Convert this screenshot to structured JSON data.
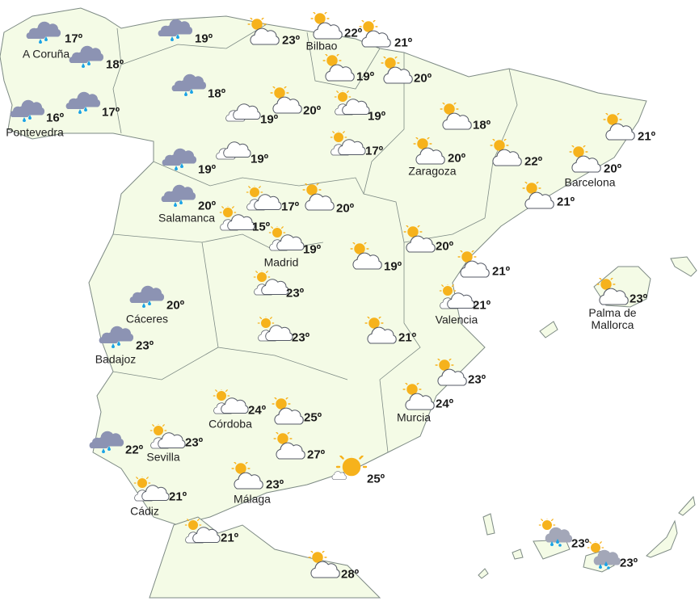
{
  "colors": {
    "land": "#f4fbe6",
    "border": "#7d8a84",
    "sea": "#ffffff",
    "rain_cloud": "#8c93b3",
    "cloud": "#ffffff",
    "sun": "#f6b21c",
    "rain": "#1aa3e6"
  },
  "locations": [
    {
      "label": "A Coruña",
      "temp": "17º",
      "icon": "rain"
    },
    {
      "label": "",
      "temp": "18º",
      "icon": "rain"
    },
    {
      "label": "Pontevedra",
      "temp": "16º",
      "icon": "rain"
    },
    {
      "label": "",
      "temp": "17º",
      "icon": "rain"
    },
    {
      "label": "",
      "temp": "19º",
      "icon": "rain"
    },
    {
      "label": "",
      "temp": "18º",
      "icon": "rain"
    },
    {
      "label": "",
      "temp": "23º",
      "icon": "sun-cloud"
    },
    {
      "label": "Bilbao",
      "temp": "22º",
      "icon": "sun-cloud"
    },
    {
      "label": "",
      "temp": "21º",
      "icon": "sun-cloud"
    },
    {
      "label": "",
      "temp": "19º",
      "icon": "sun-cloud"
    },
    {
      "label": "",
      "temp": "20º",
      "icon": "sun-cloud"
    },
    {
      "label": "",
      "temp": "19º",
      "icon": "clouds"
    },
    {
      "label": "",
      "temp": "20º",
      "icon": "sun-cloud"
    },
    {
      "label": "",
      "temp": "19º",
      "icon": "sun-clouds"
    },
    {
      "label": "",
      "temp": "17º",
      "icon": "sun-clouds"
    },
    {
      "label": "",
      "temp": "18º",
      "icon": "sun-cloud"
    },
    {
      "label": "",
      "temp": "21º",
      "icon": "sun-cloud"
    },
    {
      "label": "",
      "temp": "19º",
      "icon": "rain"
    },
    {
      "label": "",
      "temp": "19º",
      "icon": "clouds"
    },
    {
      "label": "Zaragoza",
      "temp": "20º",
      "icon": "sun-cloud"
    },
    {
      "label": "",
      "temp": "22º",
      "icon": "sun-cloud"
    },
    {
      "label": "Barcelona",
      "temp": "20º",
      "icon": "sun-cloud"
    },
    {
      "label": "Salamanca",
      "temp": "20º",
      "icon": "rain"
    },
    {
      "label": "",
      "temp": "17º",
      "icon": "sun-clouds"
    },
    {
      "label": "",
      "temp": "15º",
      "icon": "sun-clouds"
    },
    {
      "label": "",
      "temp": "20º",
      "icon": "sun-cloud"
    },
    {
      "label": "",
      "temp": "21º",
      "icon": "sun-cloud"
    },
    {
      "label": "Madrid",
      "temp": "19º",
      "icon": "sun-clouds"
    },
    {
      "label": "",
      "temp": "20º",
      "icon": "sun-cloud"
    },
    {
      "label": "",
      "temp": "19º",
      "icon": "sun-cloud"
    },
    {
      "label": "",
      "temp": "21º",
      "icon": "sun-cloud"
    },
    {
      "label": "Cáceres",
      "temp": "20º",
      "icon": "rain"
    },
    {
      "label": "",
      "temp": "23º",
      "icon": "sun-clouds"
    },
    {
      "label": "Valencia",
      "temp": "21º",
      "icon": "sun-clouds"
    },
    {
      "label": "Palma de\nMallorca",
      "temp": "23º",
      "icon": "sun-cloud"
    },
    {
      "label": "Badajoz",
      "temp": "23º",
      "icon": "rain"
    },
    {
      "label": "",
      "temp": "23º",
      "icon": "sun-clouds"
    },
    {
      "label": "",
      "temp": "21º",
      "icon": "sun-cloud"
    },
    {
      "label": "",
      "temp": "23º",
      "icon": "sun-cloud"
    },
    {
      "label": "Córdoba",
      "temp": "24º",
      "icon": "sun-clouds"
    },
    {
      "label": "",
      "temp": "25º",
      "icon": "sun-cloud"
    },
    {
      "label": "Murcia",
      "temp": "24º",
      "icon": "sun-cloud"
    },
    {
      "label": "",
      "temp": "22º",
      "icon": "rain"
    },
    {
      "label": "Sevilla",
      "temp": "23º",
      "icon": "sun-clouds"
    },
    {
      "label": "",
      "temp": "27º",
      "icon": "sun-cloud"
    },
    {
      "label": "Málaga",
      "temp": "23º",
      "icon": "sun-cloud"
    },
    {
      "label": "",
      "temp": "25º",
      "icon": "sun"
    },
    {
      "label": "Cádiz",
      "temp": "21º",
      "icon": "sun-clouds"
    },
    {
      "label": "",
      "temp": "21º",
      "icon": "sun-clouds"
    },
    {
      "label": "",
      "temp": "28º",
      "icon": "sun-cloud"
    },
    {
      "label": "",
      "temp": "23º",
      "icon": "sun-rain"
    },
    {
      "label": "",
      "temp": "23º",
      "icon": "sun-rain"
    }
  ]
}
